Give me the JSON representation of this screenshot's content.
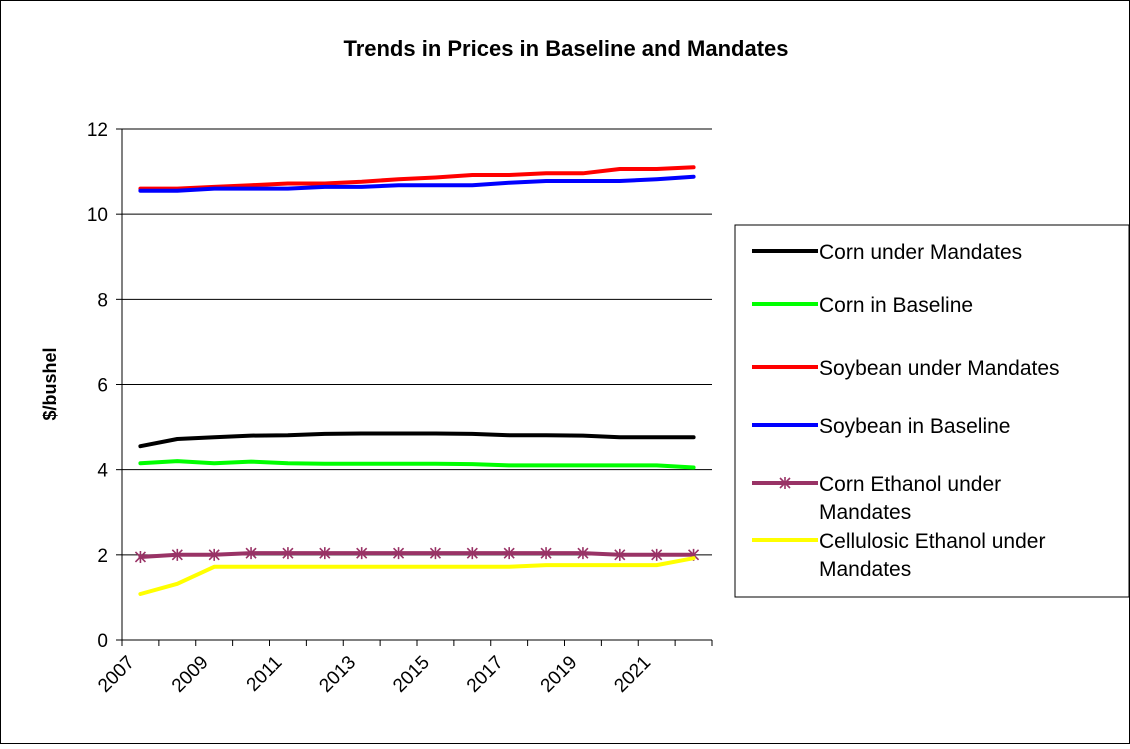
{
  "chart_data": {
    "type": "line",
    "title": "Trends in Prices in Baseline and Mandates",
    "xlabel": "",
    "ylabel": "$/bushel",
    "ylim": [
      0,
      12
    ],
    "yticks": [
      "0",
      "2",
      "4",
      "6",
      "8",
      "10",
      "12"
    ],
    "x_tick_labels": [
      "2007",
      "2009",
      "2011",
      "2013",
      "2015",
      "2017",
      "2019",
      "2021"
    ],
    "x": [
      2007,
      2008,
      2009,
      2010,
      2011,
      2012,
      2013,
      2014,
      2015,
      2016,
      2017,
      2018,
      2019,
      2020,
      2021,
      2022
    ],
    "grid": "horizontal",
    "legend_position": "right",
    "series": [
      {
        "name": "Corn under Mandates",
        "color": "#000000",
        "marker": "none",
        "values": [
          4.55,
          4.72,
          4.76,
          4.8,
          4.81,
          4.84,
          4.85,
          4.85,
          4.85,
          4.84,
          4.81,
          4.81,
          4.8,
          4.76,
          4.76,
          4.76
        ]
      },
      {
        "name": "Corn in Baseline",
        "color": "#00ff00",
        "marker": "none",
        "values": [
          4.15,
          4.2,
          4.15,
          4.19,
          4.15,
          4.14,
          4.14,
          4.14,
          4.14,
          4.13,
          4.1,
          4.1,
          4.1,
          4.1,
          4.1,
          4.05
        ]
      },
      {
        "name": "Soybean under Mandates",
        "color": "#ff0000",
        "marker": "none",
        "values": [
          10.6,
          10.6,
          10.64,
          10.68,
          10.72,
          10.72,
          10.76,
          10.82,
          10.86,
          10.92,
          10.92,
          10.96,
          10.96,
          11.06,
          11.06,
          11.1
        ]
      },
      {
        "name": "Soybean in Baseline",
        "color": "#0000ff",
        "marker": "none",
        "values": [
          10.55,
          10.55,
          10.6,
          10.6,
          10.6,
          10.64,
          10.64,
          10.68,
          10.68,
          10.68,
          10.74,
          10.78,
          10.78,
          10.78,
          10.82,
          10.88
        ]
      },
      {
        "name": "Corn Ethanol under Mandates",
        "color": "#993366",
        "marker": "star",
        "values": [
          1.95,
          2.0,
          2.0,
          2.04,
          2.04,
          2.04,
          2.04,
          2.04,
          2.04,
          2.04,
          2.04,
          2.04,
          2.04,
          2.0,
          2.0,
          2.0
        ]
      },
      {
        "name": "Cellulosic Ethanol under Mandates",
        "color": "#ffff00",
        "marker": "none",
        "values": [
          1.08,
          1.32,
          1.72,
          1.72,
          1.72,
          1.72,
          1.72,
          1.72,
          1.72,
          1.72,
          1.72,
          1.76,
          1.76,
          1.76,
          1.76,
          1.92
        ]
      }
    ]
  }
}
